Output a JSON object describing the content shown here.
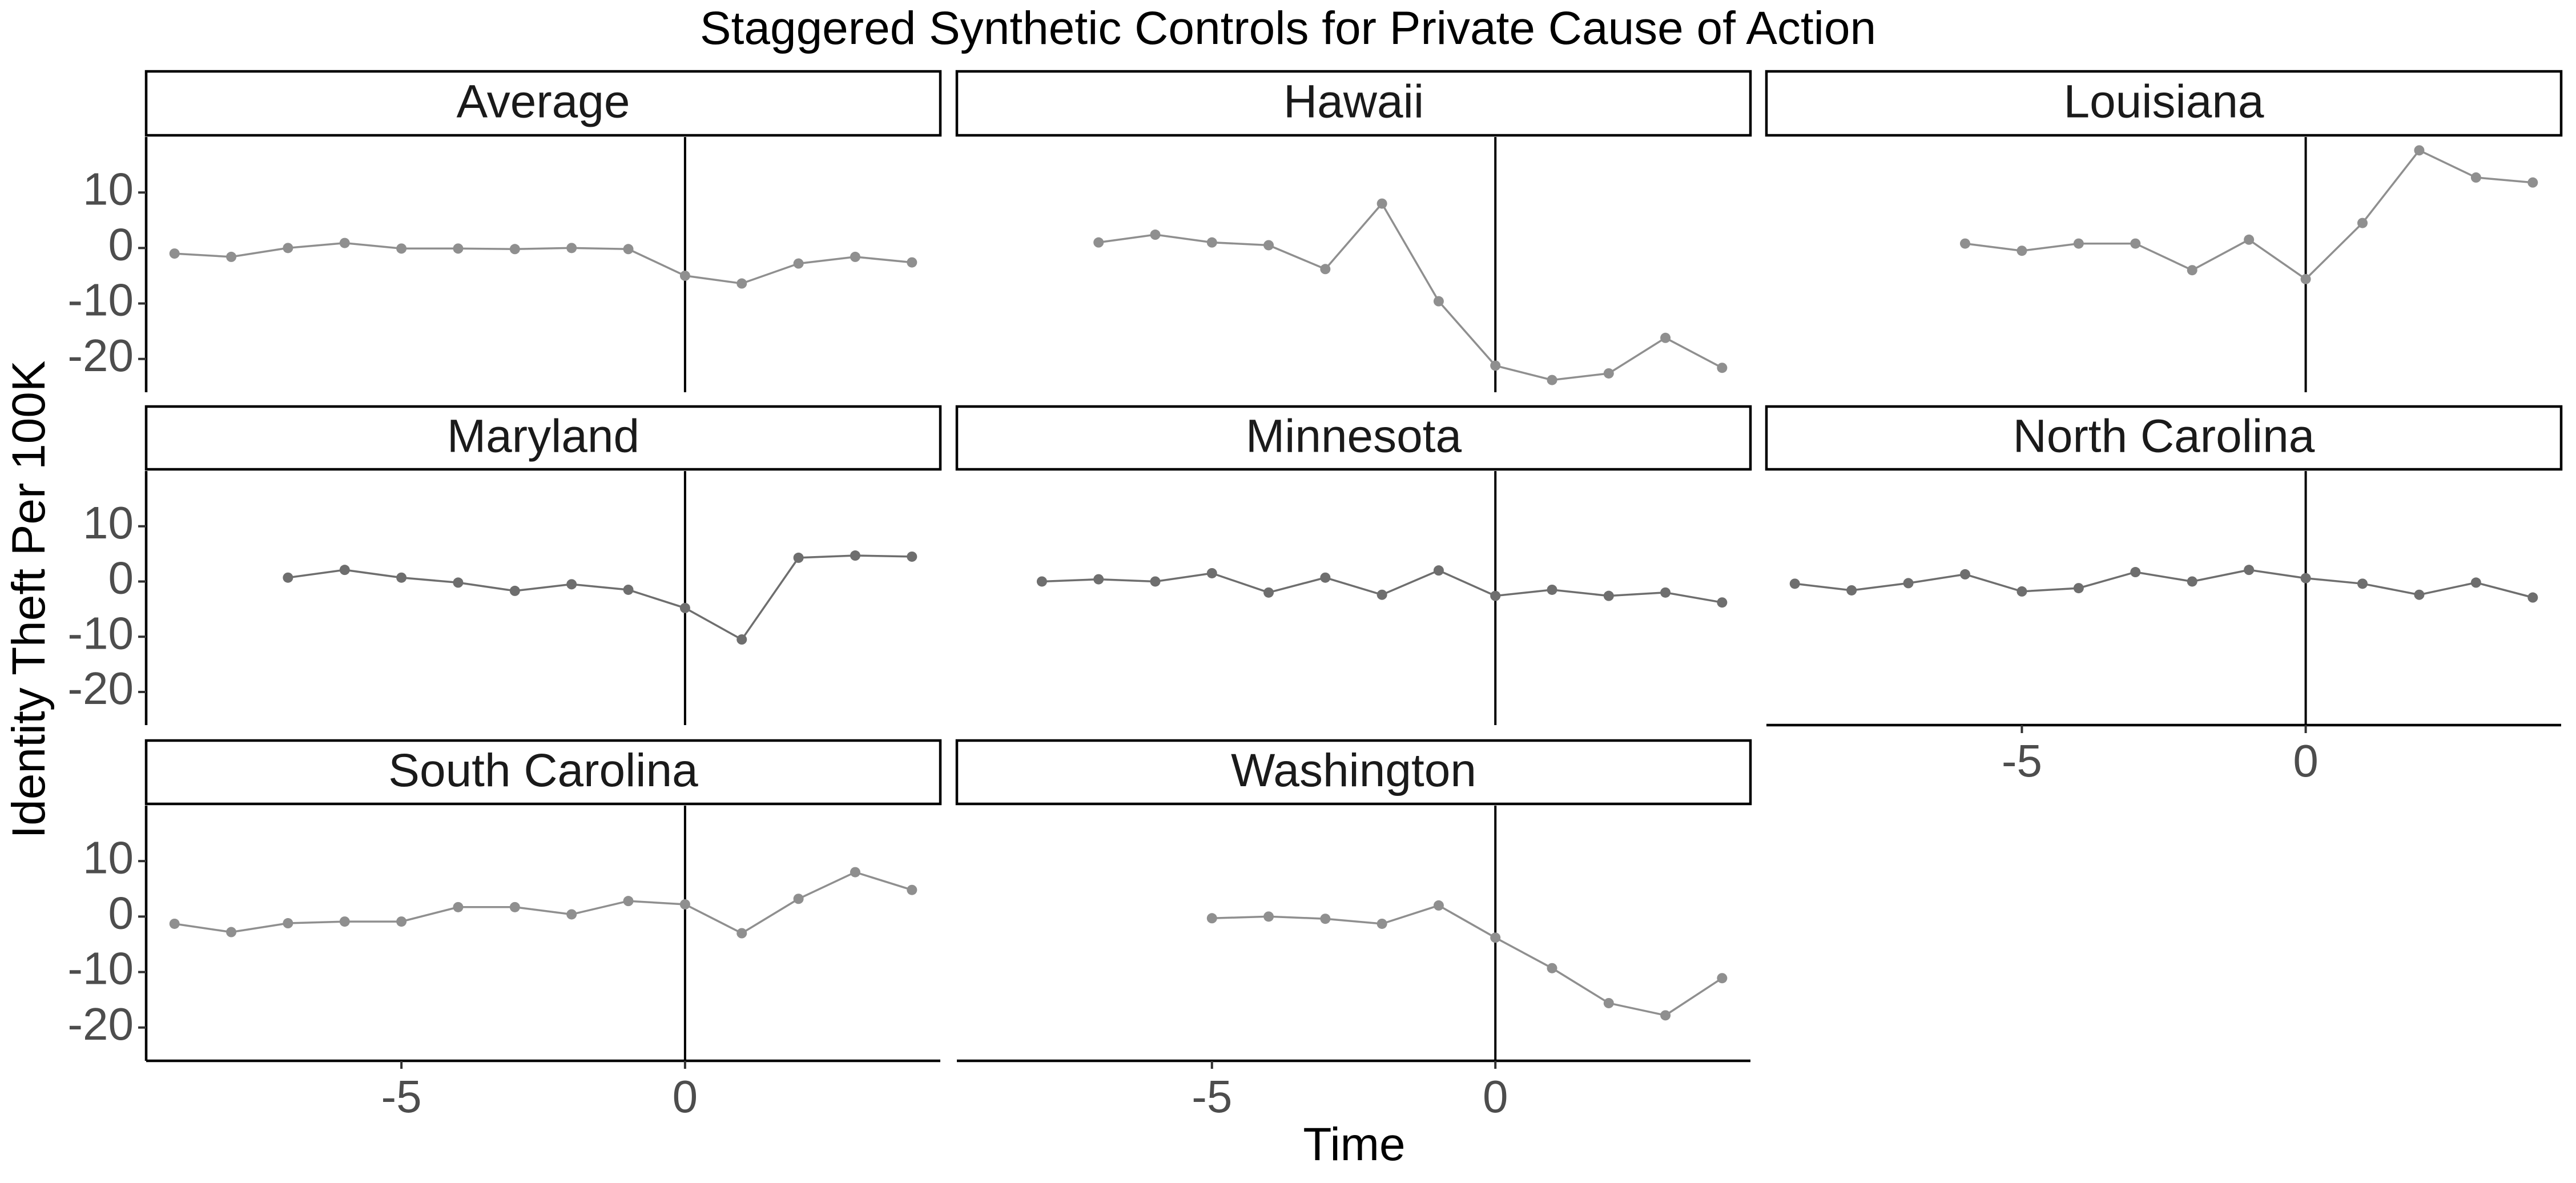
{
  "chart_data": {
    "type": "line",
    "title": "Staggered Synthetic Controls for Private Cause of Action",
    "xlabel": "Time",
    "ylabel": "Identity Theft Per 100K",
    "xlim": [
      -9.5,
      4.5
    ],
    "ylim": [
      -26,
      20
    ],
    "x_ticks": [
      -5,
      0
    ],
    "y_ticks": [
      10,
      0,
      -10,
      -20
    ],
    "grid": false,
    "treatment_x": 0,
    "colors": {
      "line": "#8f8f8f",
      "point": "#8f8f8f",
      "line_dark": "#6e6e6e"
    },
    "panels": [
      {
        "name": "Average",
        "x": [
          -9,
          -8,
          -7,
          -6,
          -5,
          -4,
          -3,
          -2,
          -1,
          0,
          1,
          2,
          3,
          4
        ],
        "y": [
          -1,
          -1.6,
          0,
          0.9,
          -0.1,
          -0.1,
          -0.2,
          0,
          -0.2,
          -5,
          -6.4,
          -2.8,
          -1.6,
          -2.6
        ]
      },
      {
        "name": "Hawaii",
        "x": [
          -7,
          -6,
          -5,
          -4,
          -3,
          -2,
          -1,
          0,
          1,
          2,
          3,
          4
        ],
        "y": [
          1,
          2.4,
          1,
          0.5,
          -3.8,
          8,
          -9.6,
          -21.2,
          -23.8,
          -22.6,
          -16.2,
          -21.6
        ]
      },
      {
        "name": "Louisiana",
        "x": [
          -6,
          -5,
          -4,
          -3,
          -2,
          -1,
          0,
          1,
          2,
          3,
          4
        ],
        "y": [
          0.8,
          -0.5,
          0.8,
          0.8,
          -4,
          1.5,
          -5.6,
          4.5,
          17.6,
          12.7,
          11.8
        ]
      },
      {
        "name": "Maryland",
        "x": [
          -7,
          -6,
          -5,
          -4,
          -3,
          -2,
          -1,
          0,
          1,
          2,
          3,
          4
        ],
        "y": [
          0.7,
          2.1,
          0.7,
          -0.2,
          -1.7,
          -0.5,
          -1.5,
          -4.8,
          -10.5,
          4.3,
          4.7,
          4.5
        ]
      },
      {
        "name": "Minnesota",
        "x": [
          -8,
          -7,
          -6,
          -5,
          -4,
          -3,
          -2,
          -1,
          0,
          1,
          2,
          3,
          4
        ],
        "y": [
          0,
          0.4,
          0,
          1.5,
          -2,
          0.7,
          -2.4,
          2,
          -2.6,
          -1.5,
          -2.6,
          -2,
          -3.8
        ]
      },
      {
        "name": "North Carolina",
        "x": [
          -9,
          -8,
          -7,
          -6,
          -5,
          -4,
          -3,
          -2,
          -1,
          0,
          1,
          2,
          3,
          4
        ],
        "y": [
          -0.4,
          -1.6,
          -0.3,
          1.3,
          -1.8,
          -1.2,
          1.7,
          0,
          2.1,
          0.6,
          -0.4,
          -2.4,
          -0.2,
          -2.9
        ]
      },
      {
        "name": "South Carolina",
        "x": [
          -9,
          -8,
          -7,
          -6,
          -5,
          -4,
          -3,
          -2,
          -1,
          0,
          1,
          2,
          3,
          4
        ],
        "y": [
          -1.3,
          -2.8,
          -1.2,
          -0.9,
          -0.9,
          1.7,
          1.7,
          0.4,
          2.8,
          2.2,
          -3,
          3.2,
          8,
          4.8
        ]
      },
      {
        "name": "Washington",
        "x": [
          -5,
          -4,
          -3,
          -2,
          -1,
          0,
          1,
          2,
          3,
          4
        ],
        "y": [
          -0.3,
          0,
          -0.4,
          -1.3,
          2,
          -3.8,
          -9.3,
          -15.6,
          -17.8,
          -11.1
        ]
      }
    ]
  }
}
